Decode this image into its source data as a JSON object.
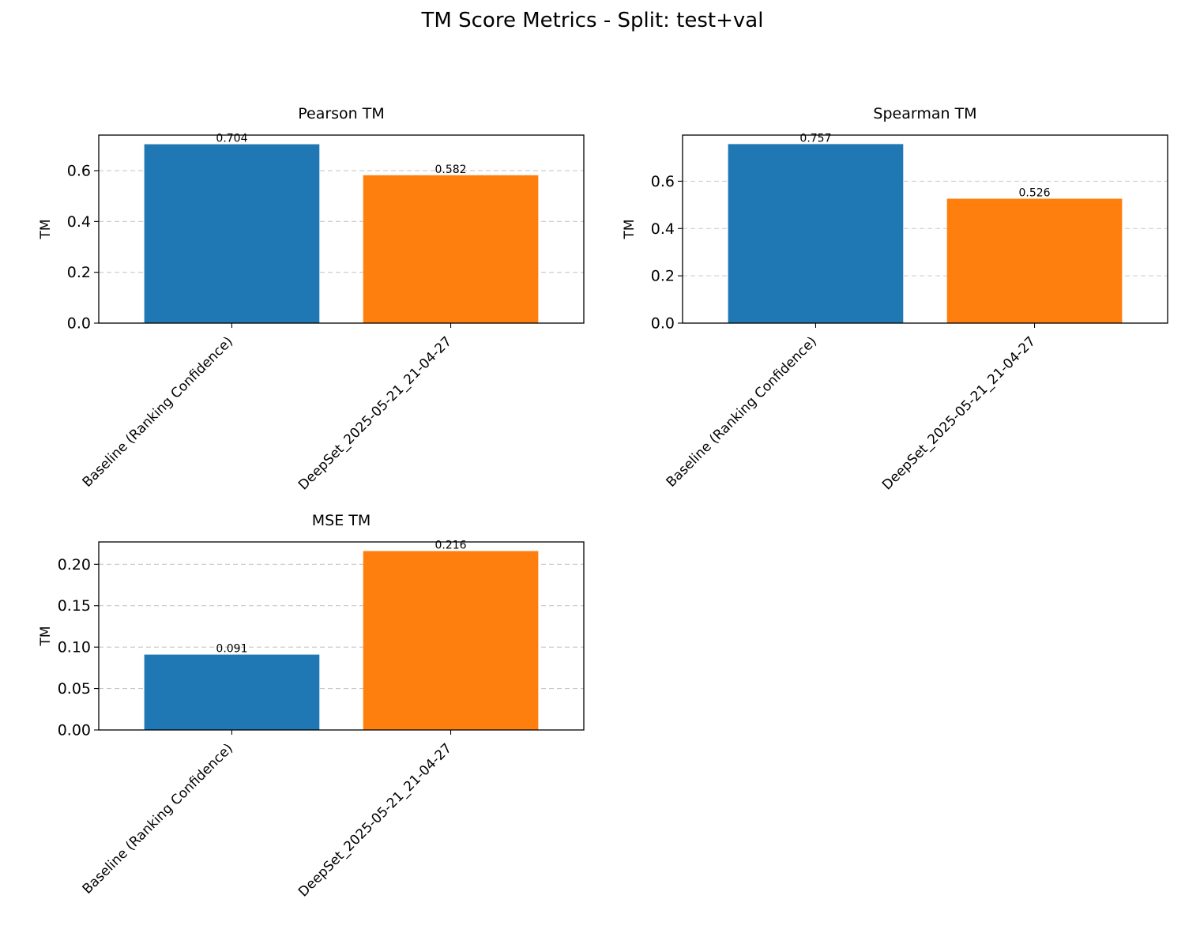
{
  "figure": {
    "title": "TM Score Metrics - Split: test+val"
  },
  "chart_data": [
    {
      "type": "bar",
      "title": "Pearson TM",
      "xlabel": "",
      "ylabel": "TM",
      "categories": [
        "Baseline (Ranking Confidence)",
        "DeepSet_2025-05-21_21-04-27"
      ],
      "values": [
        0.704,
        0.582
      ],
      "value_labels": [
        "0.704",
        "0.582"
      ],
      "colors": [
        "#1f77b4",
        "#ff7f0e"
      ],
      "ylim": [
        0,
        0.74
      ],
      "yticks": [
        0.0,
        0.2,
        0.4,
        0.6
      ],
      "ytick_labels": [
        "0.0",
        "0.2",
        "0.4",
        "0.6"
      ],
      "grid": "y-dashed"
    },
    {
      "type": "bar",
      "title": "Spearman TM",
      "xlabel": "",
      "ylabel": "TM",
      "categories": [
        "Baseline (Ranking Confidence)",
        "DeepSet_2025-05-21_21-04-27"
      ],
      "values": [
        0.757,
        0.526
      ],
      "value_labels": [
        "0.757",
        "0.526"
      ],
      "colors": [
        "#1f77b4",
        "#ff7f0e"
      ],
      "ylim": [
        0,
        0.795
      ],
      "yticks": [
        0.0,
        0.2,
        0.4,
        0.6
      ],
      "ytick_labels": [
        "0.0",
        "0.2",
        "0.4",
        "0.6"
      ],
      "grid": "y-dashed"
    },
    {
      "type": "bar",
      "title": "MSE TM",
      "xlabel": "",
      "ylabel": "TM",
      "categories": [
        "Baseline (Ranking Confidence)",
        "DeepSet_2025-05-21_21-04-27"
      ],
      "values": [
        0.091,
        0.216
      ],
      "value_labels": [
        "0.091",
        "0.216"
      ],
      "colors": [
        "#1f77b4",
        "#ff7f0e"
      ],
      "ylim": [
        0,
        0.227
      ],
      "yticks": [
        0.0,
        0.05,
        0.1,
        0.15,
        0.2
      ],
      "ytick_labels": [
        "0.00",
        "0.05",
        "0.10",
        "0.15",
        "0.20"
      ],
      "grid": "y-dashed"
    }
  ]
}
